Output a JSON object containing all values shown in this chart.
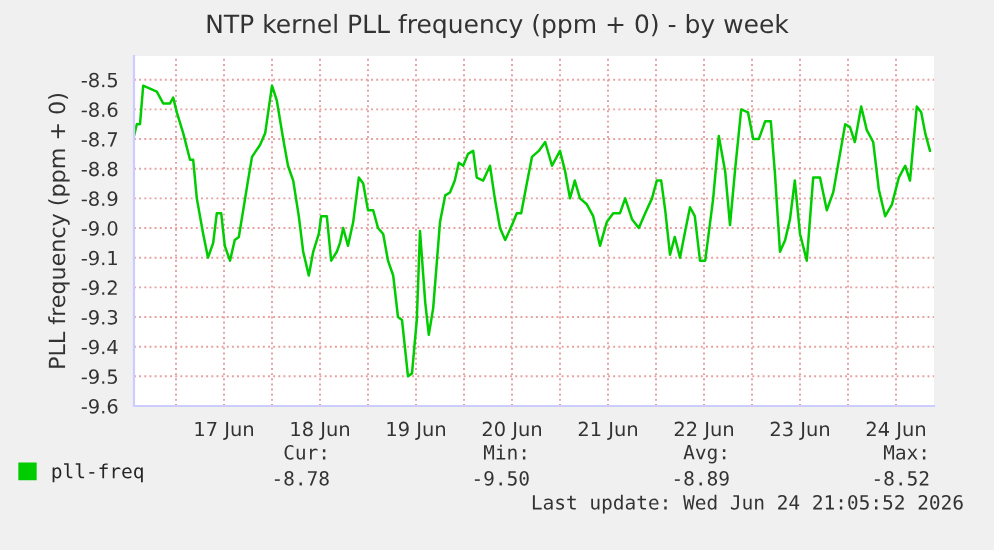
{
  "chart_data": {
    "type": "line",
    "title": "NTP kernel PLL frequency (ppm + 0) - by week",
    "ylabel": "PLL frequency (ppm + 0)",
    "x": [
      "2026-06-16T13:30",
      "2026-06-16T14:12",
      "2026-06-16T15:00",
      "2026-06-16T15:48",
      "2026-06-16T17:30",
      "2026-06-16T19:12",
      "2026-06-16T20:48",
      "2026-06-16T22:30",
      "2026-06-16T23:18",
      "2026-06-17T00:12",
      "2026-06-17T01:48",
      "2026-06-17T03:30",
      "2026-06-17T04:18",
      "2026-06-17T05:12",
      "2026-06-17T06:48",
      "2026-06-17T08:00",
      "2026-06-17T09:18",
      "2026-06-17T10:12",
      "2026-06-17T11:18",
      "2026-06-17T12:12",
      "2026-06-17T13:30",
      "2026-06-17T14:42",
      "2026-06-17T15:42",
      "2026-06-17T16:48",
      "2026-06-17T18:00",
      "2026-06-17T19:00",
      "2026-06-17T21:00",
      "2026-06-17T22:18",
      "2026-06-18T00:00",
      "2026-06-18T01:12",
      "2026-06-18T02:48",
      "2026-06-18T04:00",
      "2026-06-18T05:18",
      "2026-06-18T06:42",
      "2026-06-18T07:48",
      "2026-06-18T09:12",
      "2026-06-18T10:18",
      "2026-06-18T11:42",
      "2026-06-18T12:18",
      "2026-06-18T13:42",
      "2026-06-18T14:48",
      "2026-06-18T16:12",
      "2026-06-18T17:00",
      "2026-06-18T17:48",
      "2026-06-18T19:00",
      "2026-06-18T20:18",
      "2026-06-18T21:42",
      "2026-06-18T22:48",
      "2026-06-19T00:00",
      "2026-06-19T01:18",
      "2026-06-19T02:30",
      "2026-06-19T03:48",
      "2026-06-19T05:00",
      "2026-06-19T06:18",
      "2026-06-19T07:30",
      "2026-06-19T08:30",
      "2026-06-19T10:00",
      "2026-06-19T11:00",
      "2026-06-19T12:12",
      "2026-06-19T13:00",
      "2026-06-19T14:18",
      "2026-06-19T15:12",
      "2026-06-19T16:18",
      "2026-06-19T18:00",
      "2026-06-19T19:18",
      "2026-06-19T20:30",
      "2026-06-19T21:42",
      "2026-06-19T22:42",
      "2026-06-19T23:48",
      "2026-06-20T01:00",
      "2026-06-20T02:18",
      "2026-06-20T03:12",
      "2026-06-20T04:48",
      "2026-06-20T06:30",
      "2026-06-20T07:42",
      "2026-06-20T09:00",
      "2026-06-20T10:18",
      "2026-06-20T12:00",
      "2026-06-20T13:12",
      "2026-06-20T14:18",
      "2026-06-20T15:42",
      "2026-06-20T17:00",
      "2026-06-20T18:42",
      "2026-06-20T20:18",
      "2026-06-20T22:00",
      "2026-06-21T00:00",
      "2026-06-21T01:18",
      "2026-06-21T02:30",
      "2026-06-21T03:42",
      "2026-06-21T05:00",
      "2026-06-21T06:42",
      "2026-06-21T08:18",
      "2026-06-21T10:00",
      "2026-06-21T11:42",
      "2026-06-21T13:18",
      "2026-06-21T15:00",
      "2026-06-21T16:18",
      "2026-06-21T18:00",
      "2026-06-21T19:42",
      "2026-06-21T21:18",
      "2026-06-21T23:00",
      "2026-06-22T00:12",
      "2026-06-22T01:18",
      "2026-06-22T02:18",
      "2026-06-22T03:30",
      "2026-06-22T04:42",
      "2026-06-22T06:00",
      "2026-06-22T07:18",
      "2026-06-22T08:30",
      "2026-06-22T09:42",
      "2026-06-22T11:00",
      "2026-06-22T12:18",
      "2026-06-22T14:18",
      "2026-06-22T15:42",
      "2026-06-22T17:18",
      "2026-06-22T18:30",
      "2026-06-22T19:48",
      "2026-06-22T21:18",
      "2026-06-22T23:00",
      "2026-06-23T00:18",
      "2026-06-23T01:42",
      "2026-06-23T03:18",
      "2026-06-23T04:42",
      "2026-06-23T05:42",
      "2026-06-23T07:00",
      "2026-06-23T08:18",
      "2026-06-23T09:30",
      "2026-06-23T10:42",
      "2026-06-23T12:00",
      "2026-06-23T13:42",
      "2026-06-23T15:18",
      "2026-06-23T17:00",
      "2026-06-23T18:42",
      "2026-06-23T20:18",
      "2026-06-23T22:00",
      "2026-06-23T23:18",
      "2026-06-24T00:30",
      "2026-06-24T01:42",
      "2026-06-24T03:18",
      "2026-06-24T04:42",
      "2026-06-24T06:18",
      "2026-06-24T07:42",
      "2026-06-24T09:18",
      "2026-06-24T11:00",
      "2026-06-24T12:42",
      "2026-06-24T14:18",
      "2026-06-24T15:30",
      "2026-06-24T17:12",
      "2026-06-24T18:18",
      "2026-06-24T19:18",
      "2026-06-24T20:30"
    ],
    "series": [
      {
        "name": "pll-freq",
        "color": "#00cc00",
        "values": [
          -8.69,
          -8.65,
          -8.65,
          -8.52,
          -8.53,
          -8.54,
          -8.58,
          -8.58,
          -8.56,
          -8.61,
          -8.68,
          -8.77,
          -8.77,
          -8.9,
          -9.02,
          -9.1,
          -9.05,
          -8.95,
          -8.95,
          -9.06,
          -9.11,
          -9.04,
          -9.03,
          -8.94,
          -8.84,
          -8.76,
          -8.72,
          -8.68,
          -8.52,
          -8.57,
          -8.7,
          -8.79,
          -8.84,
          -8.96,
          -9.08,
          -9.16,
          -9.08,
          -9.02,
          -8.96,
          -8.96,
          -9.11,
          -9.08,
          -9.05,
          -9,
          -9.06,
          -8.98,
          -8.83,
          -8.85,
          -8.94,
          -8.94,
          -9,
          -9.02,
          -9.11,
          -9.16,
          -9.3,
          -9.31,
          -9.5,
          -9.49,
          -9.31,
          -9.01,
          -9.25,
          -9.36,
          -9.27,
          -8.98,
          -8.89,
          -8.88,
          -8.84,
          -8.78,
          -8.79,
          -8.75,
          -8.74,
          -8.83,
          -8.84,
          -8.79,
          -8.9,
          -9,
          -9.04,
          -8.99,
          -8.95,
          -8.95,
          -8.85,
          -8.76,
          -8.74,
          -8.71,
          -8.79,
          -8.74,
          -8.81,
          -8.9,
          -8.84,
          -8.9,
          -8.92,
          -8.96,
          -9.06,
          -8.98,
          -8.95,
          -8.95,
          -8.9,
          -8.97,
          -9,
          -8.95,
          -8.9,
          -8.84,
          -8.84,
          -8.94,
          -9.09,
          -9.03,
          -9.1,
          -9.01,
          -8.93,
          -8.96,
          -9.11,
          -9.11,
          -8.9,
          -8.69,
          -8.81,
          -8.99,
          -8.8,
          -8.6,
          -8.61,
          -8.7,
          -8.7,
          -8.64,
          -8.64,
          -8.81,
          -9.08,
          -9.04,
          -8.97,
          -8.84,
          -9.02,
          -9.11,
          -8.83,
          -8.83,
          -8.94,
          -8.88,
          -8.75,
          -8.65,
          -8.66,
          -8.71,
          -8.59,
          -8.67,
          -8.71,
          -8.87,
          -8.96,
          -8.92,
          -8.83,
          -8.79,
          -8.84,
          -8.59,
          -8.61,
          -8.68,
          -8.74
        ]
      }
    ],
    "xlim": [
      "2026-06-16T13:30",
      "2026-06-24T21:30"
    ],
    "xticks": [
      {
        "value": "2026-06-17T00:00",
        "label": null
      },
      {
        "value": "2026-06-17T12:00",
        "label": "17 Jun"
      },
      {
        "value": "2026-06-18T00:00",
        "label": null
      },
      {
        "value": "2026-06-18T12:00",
        "label": "18 Jun"
      },
      {
        "value": "2026-06-19T00:00",
        "label": null
      },
      {
        "value": "2026-06-19T12:00",
        "label": "19 Jun"
      },
      {
        "value": "2026-06-20T00:00",
        "label": null
      },
      {
        "value": "2026-06-20T12:00",
        "label": "20 Jun"
      },
      {
        "value": "2026-06-21T00:00",
        "label": null
      },
      {
        "value": "2026-06-21T12:00",
        "label": "21 Jun"
      },
      {
        "value": "2026-06-22T00:00",
        "label": null
      },
      {
        "value": "2026-06-22T12:00",
        "label": "22 Jun"
      },
      {
        "value": "2026-06-23T00:00",
        "label": null
      },
      {
        "value": "2026-06-23T12:00",
        "label": "23 Jun"
      },
      {
        "value": "2026-06-24T00:00",
        "label": null
      },
      {
        "value": "2026-06-24T12:00",
        "label": "24 Jun"
      }
    ],
    "ylim": [
      -9.6,
      -8.42
    ],
    "yticks": [
      {
        "value": -8.5,
        "label": "-8.5"
      },
      {
        "value": -8.6,
        "label": "-8.6"
      },
      {
        "value": -8.7,
        "label": "-8.7"
      },
      {
        "value": -8.8,
        "label": "-8.8"
      },
      {
        "value": -8.9,
        "label": "-8.9"
      },
      {
        "value": -9.0,
        "label": "-9.0"
      },
      {
        "value": -9.1,
        "label": "-9.1"
      },
      {
        "value": -9.2,
        "label": "-9.2"
      },
      {
        "value": -9.3,
        "label": "-9.3"
      },
      {
        "value": -9.4,
        "label": "-9.4"
      },
      {
        "value": -9.5,
        "label": "-9.5"
      },
      {
        "value": -9.6,
        "label": "-9.6"
      }
    ],
    "grid": true,
    "legend": "bottom",
    "marker": "none",
    "line_style": "solid",
    "annotations": [
      "Cur:",
      "Min:",
      "Avg:",
      "Max:",
      "-8.78",
      "-9.50",
      "-8.89",
      "-8.52",
      "Last update: Wed Jun 24 21:05:52 2026"
    ]
  }
}
